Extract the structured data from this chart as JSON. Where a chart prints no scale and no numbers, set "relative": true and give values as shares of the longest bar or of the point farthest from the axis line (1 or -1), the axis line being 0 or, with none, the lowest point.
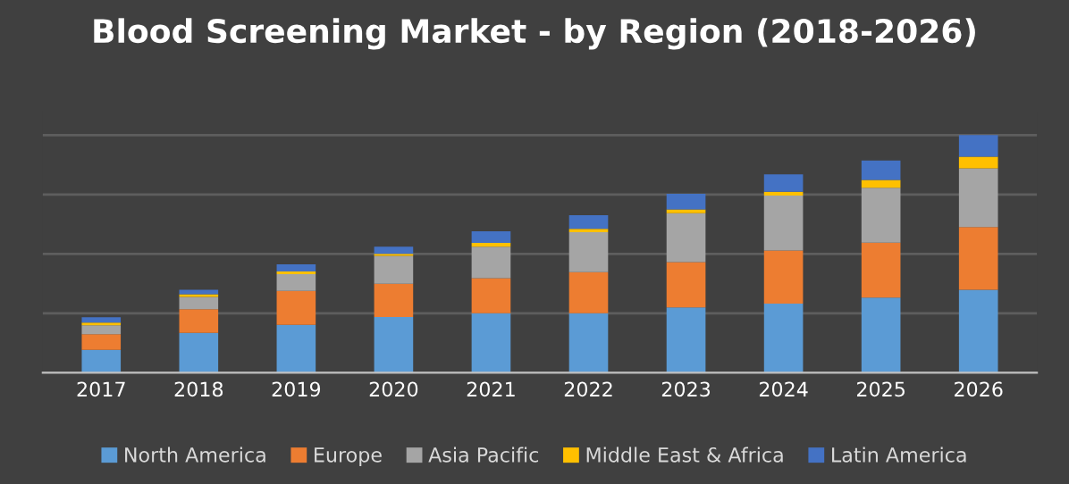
{
  "chart_data": {
    "type": "bar",
    "title": "Blood Screening Market - by Region (2018-2026)",
    "stacked": true,
    "relative": true,
    "grid": "y",
    "legend": "bottom",
    "categories": [
      "2017",
      "2018",
      "2019",
      "2020",
      "2021",
      "2022",
      "2023",
      "2024",
      "2025",
      "2026"
    ],
    "series": [
      {
        "name": "North America",
        "color": "#5b9bd5",
        "values": [
          0.096,
          0.168,
          0.201,
          0.234,
          0.25,
          0.25,
          0.275,
          0.291,
          0.316,
          0.349
        ]
      },
      {
        "name": "Europe",
        "color": "#ed7d31",
        "values": [
          0.066,
          0.099,
          0.143,
          0.14,
          0.148,
          0.173,
          0.19,
          0.223,
          0.231,
          0.264
        ]
      },
      {
        "name": "Asia Pacific",
        "color": "#a5a5a5",
        "values": [
          0.038,
          0.052,
          0.071,
          0.118,
          0.132,
          0.168,
          0.206,
          0.231,
          0.231,
          0.247
        ]
      },
      {
        "name": "Middle East & Africa",
        "color": "#ffc000",
        "values": [
          0.011,
          0.011,
          0.011,
          0.008,
          0.016,
          0.014,
          0.016,
          0.016,
          0.033,
          0.049
        ]
      },
      {
        "name": "Latin America",
        "color": "#4472c4",
        "values": [
          0.022,
          0.019,
          0.03,
          0.03,
          0.049,
          0.058,
          0.066,
          0.074,
          0.082,
          0.091
        ]
      }
    ]
  }
}
